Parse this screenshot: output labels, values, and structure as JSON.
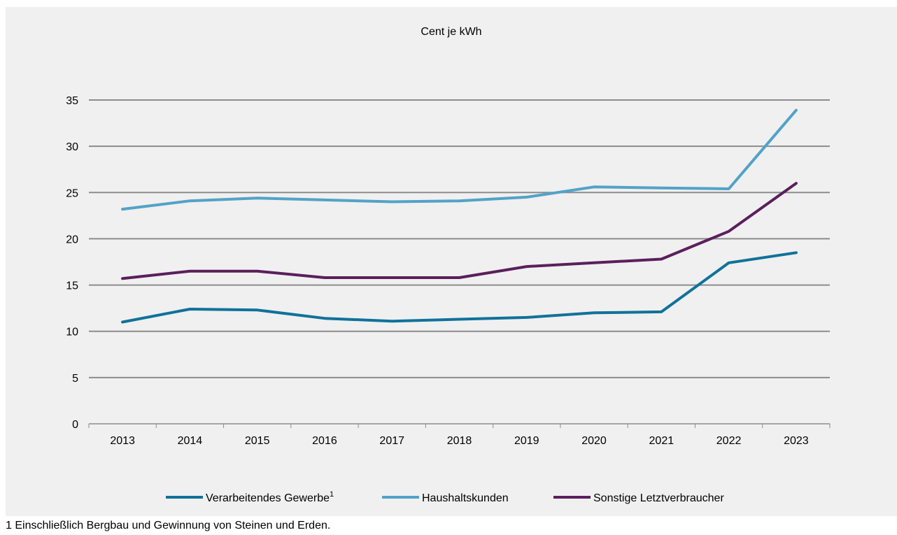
{
  "chart_data": {
    "type": "line",
    "title": "Cent je kWh",
    "categories": [
      "2013",
      "2014",
      "2015",
      "2016",
      "2017",
      "2018",
      "2019",
      "2020",
      "2021",
      "2022",
      "2023"
    ],
    "ylim": [
      0,
      35
    ],
    "yticks": [
      0,
      5,
      10,
      15,
      20,
      25,
      30,
      35
    ],
    "grid": true,
    "legend_position": "bottom",
    "series": [
      {
        "name": "Verarbeitendes Gewerbe",
        "name_sup": "1",
        "color": "#10729a",
        "values": [
          11.0,
          12.4,
          12.3,
          11.4,
          11.1,
          11.3,
          11.5,
          12.0,
          12.1,
          17.4,
          18.5
        ]
      },
      {
        "name": "Haushaltskunden",
        "color": "#53a2c7",
        "values": [
          23.2,
          24.1,
          24.4,
          24.2,
          24.0,
          24.1,
          24.5,
          25.6,
          25.5,
          25.4,
          33.9
        ]
      },
      {
        "name": "Sonstige Letztverbraucher",
        "color": "#5b1f5c",
        "values": [
          15.7,
          16.5,
          16.5,
          15.8,
          15.8,
          15.8,
          17.0,
          17.4,
          17.8,
          20.8,
          26.0
        ]
      }
    ]
  },
  "footnote": "1 Einschließlich Bergbau und Gewinnung von Steinen und Erden."
}
